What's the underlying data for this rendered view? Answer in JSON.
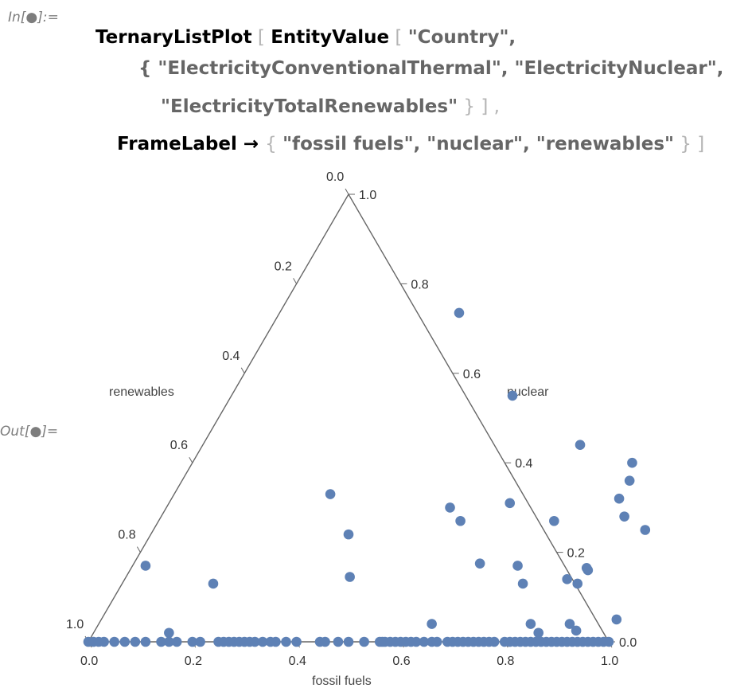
{
  "notebook": {
    "in_label": "In[●]:=",
    "out_label": "Out[●]=",
    "code": {
      "line1_fn": "TernaryListPlot",
      "line1_b1": " [ ",
      "line1_fn2": "EntityValue",
      "line1_b2": " [ ",
      "line1_str": "\"Country\",",
      "line2_b": "{ ",
      "line2_s1": "\"ElectricityConventionalThermal\",",
      "line2_s2": " \"ElectricityNuclear\",",
      "line3_s": "\"ElectricityTotalRenewables\"",
      "line3_b": " } ] ,",
      "line4_opt": "FrameLabel",
      "line4_arrow": " → ",
      "line4_b1": "{ ",
      "line4_s": "\"fossil fuels\", \"nuclear\", \"renewables\"",
      "line4_b2": " } ]"
    }
  },
  "chart_data": {
    "type": "scatter",
    "subtype": "ternary",
    "axes": [
      "fossil fuels",
      "nuclear",
      "renewables"
    ],
    "bottom_ticks": [
      "0.0",
      "0.2",
      "0.4",
      "0.6",
      "0.8",
      "1.0"
    ],
    "right_ticks": [
      "0.0",
      "0.2",
      "0.4",
      "0.6",
      "0.8",
      "1.0"
    ],
    "left_ticks": [
      "0.0",
      "0.2",
      "0.4",
      "0.6",
      "0.8",
      "1.0"
    ],
    "marker_color": "#5e81b5",
    "frame_color": "#666666",
    "points": [
      [
        0.345,
        0.735,
        -0.08
      ],
      [
        0.43,
        0.145,
        0.425
      ],
      [
        0.54,
        0.55,
        -0.09
      ],
      [
        0.725,
        0.44,
        -0.165
      ],
      [
        0.845,
        0.4,
        -0.245
      ],
      [
        0.86,
        0.36,
        -0.22
      ],
      [
        0.3,
        0.33,
        0.37
      ],
      [
        0.86,
        0.32,
        -0.18
      ],
      [
        0.655,
        0.31,
        0.035
      ],
      [
        0.545,
        0.3,
        0.155
      ],
      [
        0.89,
        0.28,
        -0.17
      ],
      [
        0.58,
        0.27,
        0.15
      ],
      [
        0.76,
        0.27,
        -0.03
      ],
      [
        0.945,
        0.25,
        -0.195
      ],
      [
        0.38,
        0.24,
        0.38
      ],
      [
        0.665,
        0.175,
        0.16
      ],
      [
        0.74,
        0.17,
        0.09
      ],
      [
        0.875,
        0.165,
        -0.04
      ],
      [
        0.88,
        0.16,
        -0.04
      ],
      [
        0.025,
        0.17,
        0.805
      ],
      [
        0.77,
        0.13,
        0.1
      ],
      [
        0.85,
        0.14,
        0.01
      ],
      [
        0.875,
        0.13,
        -0.005
      ],
      [
        0.175,
        0.13,
        0.695
      ],
      [
        0.99,
        0.05,
        -0.04
      ],
      [
        0.83,
        0.04,
        0.13
      ],
      [
        0.905,
        0.04,
        0.055
      ],
      [
        0.64,
        0.04,
        0.32
      ],
      [
        0.145,
        0.02,
        0.835
      ],
      [
        0.925,
        0.025,
        0.05
      ],
      [
        0.855,
        0.02,
        0.125
      ]
    ],
    "zero_nuclear_fossil": [
      0.0,
      0.01,
      0.02,
      0.03,
      0.05,
      0.07,
      0.09,
      0.11,
      0.14,
      0.155,
      0.17,
      0.2,
      0.215,
      0.25,
      0.26,
      0.27,
      0.28,
      0.29,
      0.3,
      0.31,
      0.32,
      0.335,
      0.35,
      0.36,
      0.38,
      0.4,
      0.445,
      0.455,
      0.48,
      0.5,
      0.53,
      0.56,
      0.565,
      0.57,
      0.58,
      0.59,
      0.6,
      0.61,
      0.62,
      0.63,
      0.645,
      0.66,
      0.67,
      0.69,
      0.7,
      0.71,
      0.72,
      0.73,
      0.74,
      0.75,
      0.76,
      0.77,
      0.78,
      0.8,
      0.81,
      0.82,
      0.83,
      0.84,
      0.85,
      0.86,
      0.87,
      0.88,
      0.89,
      0.9,
      0.91,
      0.92,
      0.93,
      0.94,
      0.95,
      0.96,
      0.97,
      0.98,
      0.99,
      1.0
    ]
  }
}
